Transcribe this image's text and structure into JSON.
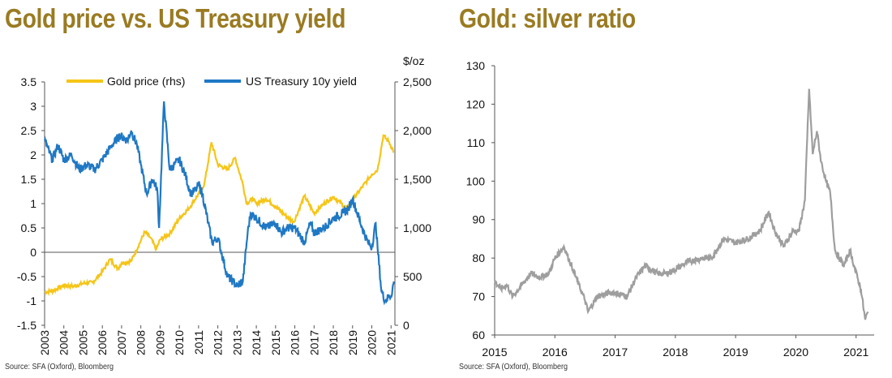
{
  "left_panel": {
    "title": "Gold price vs. US Treasury yield",
    "source": "Source: SFA (Oxford), Bloomberg",
    "right_axis_unit": "$/oz"
  },
  "right_panel": {
    "title": "Gold: silver ratio",
    "source": "Source: SFA (Oxford), Bloomberg"
  },
  "colors": {
    "gold": "#f5c518",
    "treasury": "#1f78c4",
    "ratio": "#9e9e9e",
    "title": "#9a7b22"
  },
  "chart_data": [
    {
      "type": "line",
      "title": "Gold price vs. US Treasury yield",
      "x_ticks": [
        "2003",
        "2004",
        "2005",
        "2006",
        "2007",
        "2008",
        "2009",
        "2010",
        "2011",
        "2012",
        "2013",
        "2014",
        "2015",
        "2016",
        "2017",
        "2018",
        "2019",
        "2020",
        "2021"
      ],
      "xlim": [
        2003,
        2021.2
      ],
      "y_left": {
        "ylim": [
          -1.5,
          3.5
        ],
        "ticks": [
          "-1.5",
          "-1",
          "-0.5",
          "0",
          "0.5",
          "1",
          "1.5",
          "2",
          "2.5",
          "3",
          "3.5"
        ]
      },
      "y_right": {
        "label": "$/oz",
        "ylim": [
          0,
          2500
        ],
        "ticks": [
          "0",
          "500",
          "1,000",
          "1,500",
          "2,000",
          "2,500"
        ]
      },
      "legend_position": "top",
      "series": [
        {
          "name": "Gold price (rhs)",
          "axis": "right",
          "x": [
            2003.0,
            2003.5,
            2004.0,
            2004.5,
            2005.0,
            2005.5,
            2006.0,
            2006.4,
            2006.8,
            2007.0,
            2007.5,
            2008.0,
            2008.2,
            2008.5,
            2008.8,
            2009.0,
            2009.5,
            2010.0,
            2010.5,
            2011.0,
            2011.3,
            2011.67,
            2012.0,
            2012.5,
            2012.9,
            2013.3,
            2013.5,
            2013.8,
            2014.0,
            2014.5,
            2015.0,
            2015.5,
            2015.95,
            2016.5,
            2017.0,
            2017.5,
            2018.0,
            2018.7,
            2019.0,
            2019.5,
            2020.0,
            2020.3,
            2020.6,
            2020.9,
            2021.15
          ],
          "values": [
            340,
            360,
            410,
            400,
            430,
            440,
            550,
            680,
            580,
            640,
            660,
            870,
            960,
            900,
            780,
            880,
            940,
            1100,
            1200,
            1350,
            1450,
            1880,
            1650,
            1600,
            1720,
            1450,
            1250,
            1300,
            1250,
            1300,
            1220,
            1130,
            1060,
            1330,
            1150,
            1250,
            1320,
            1200,
            1290,
            1420,
            1550,
            1600,
            1950,
            1880,
            1780
          ]
        },
        {
          "name": "US Treasury 10y yield",
          "axis": "left",
          "x": [
            2003.0,
            2003.4,
            2003.7,
            2004.0,
            2004.4,
            2004.8,
            2005.2,
            2005.6,
            2006.0,
            2006.5,
            2006.9,
            2007.3,
            2007.5,
            2007.8,
            2008.0,
            2008.3,
            2008.6,
            2008.85,
            2008.95,
            2009.2,
            2009.5,
            2010.0,
            2010.3,
            2010.6,
            2010.9,
            2011.0,
            2011.2,
            2011.5,
            2011.7,
            2012.0,
            2012.5,
            2012.8,
            2013.0,
            2013.3,
            2013.55,
            2013.7,
            2014.0,
            2014.5,
            2015.0,
            2015.3,
            2015.6,
            2016.0,
            2016.5,
            2016.8,
            2017.0,
            2017.5,
            2018.0,
            2018.5,
            2018.8,
            2019.0,
            2019.5,
            2019.8,
            2020.0,
            2020.2,
            2020.3,
            2020.5,
            2020.7,
            2020.9,
            2021.0,
            2021.15
          ],
          "values": [
            2.3,
            1.9,
            2.2,
            1.9,
            2.0,
            1.7,
            1.8,
            1.7,
            1.9,
            2.2,
            2.4,
            2.3,
            2.5,
            2.2,
            1.8,
            1.2,
            1.5,
            1.3,
            0.5,
            3.1,
            1.7,
            1.9,
            1.6,
            1.2,
            1.3,
            1.4,
            1.2,
            0.6,
            0.2,
            0.3,
            -0.5,
            -0.6,
            -0.7,
            -0.6,
            0.4,
            0.8,
            0.7,
            0.5,
            0.6,
            0.4,
            0.5,
            0.5,
            0.2,
            0.6,
            0.4,
            0.5,
            0.7,
            0.8,
            0.9,
            1.1,
            0.5,
            0.2,
            0.1,
            0.6,
            0.1,
            -0.8,
            -1.0,
            -0.9,
            -0.9,
            -0.6
          ]
        }
      ]
    },
    {
      "type": "line",
      "title": "Gold: silver ratio",
      "x_ticks": [
        "2015",
        "2016",
        "2017",
        "2018",
        "2019",
        "2020",
        "2021"
      ],
      "xlim": [
        2015,
        2021.3
      ],
      "ylim": [
        60,
        130
      ],
      "y_ticks": [
        "60",
        "70",
        "80",
        "90",
        "100",
        "110",
        "120",
        "130"
      ],
      "series": [
        {
          "name": "",
          "x": [
            2015.0,
            2015.1,
            2015.2,
            2015.3,
            2015.45,
            2015.6,
            2015.75,
            2015.9,
            2016.0,
            2016.15,
            2016.3,
            2016.4,
            2016.5,
            2016.55,
            2016.7,
            2016.9,
            2017.0,
            2017.2,
            2017.35,
            2017.5,
            2017.7,
            2017.85,
            2018.0,
            2018.2,
            2018.45,
            2018.6,
            2018.8,
            2019.0,
            2019.2,
            2019.4,
            2019.55,
            2019.65,
            2019.8,
            2019.95,
            2020.05,
            2020.15,
            2020.22,
            2020.28,
            2020.35,
            2020.42,
            2020.5,
            2020.57,
            2020.65,
            2020.72,
            2020.8,
            2020.9,
            2021.0,
            2021.08,
            2021.15,
            2021.2
          ],
          "values": [
            74,
            72,
            73,
            70,
            73,
            76,
            75,
            76,
            80,
            83,
            77,
            73,
            69,
            66,
            70,
            71,
            71,
            70,
            75,
            78,
            76,
            76,
            77,
            79,
            80,
            80,
            85,
            84,
            85,
            87,
            92,
            87,
            83,
            87,
            87,
            95,
            124,
            107,
            113,
            105,
            100,
            97,
            82,
            80,
            78,
            82,
            76,
            72,
            64,
            66
          ]
        }
      ]
    }
  ]
}
